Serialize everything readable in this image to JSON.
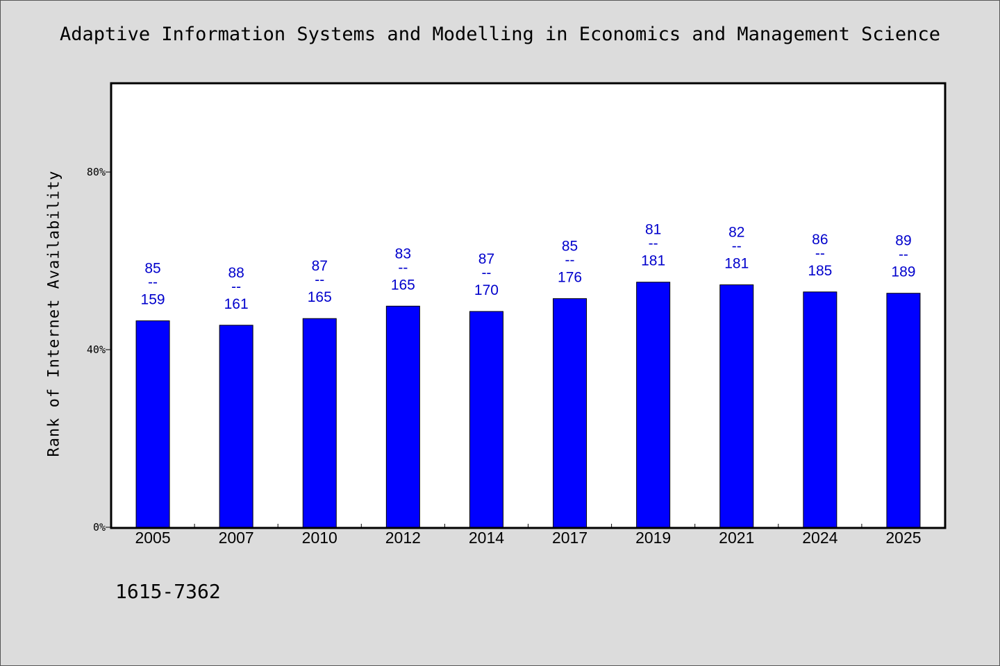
{
  "journal_title": "Adaptive Information Systems and Modelling in Economics and Management Science",
  "issn": "1615-7362",
  "colors": {
    "bar": "#0000ff",
    "label": "#0000cc",
    "background": "#dcdcdc",
    "plot_background": "#ffffff"
  },
  "chart_data": {
    "type": "bar",
    "title": "Adaptive Information Systems and Modelling in Economics and Management Science",
    "ylabel": "Rank of Internet Availability",
    "xlabel": "",
    "ylim": [
      0,
      100
    ],
    "yticks": [
      0,
      40,
      80
    ],
    "ytick_labels": [
      "0%",
      "40%",
      "80%"
    ],
    "grid": false,
    "categories": [
      "2005",
      "2007",
      "2010",
      "2012",
      "2014",
      "2017",
      "2019",
      "2021",
      "2024",
      "2025"
    ],
    "values": [
      46.5,
      45.5,
      47,
      49.8,
      48.6,
      51.5,
      55.2,
      54.6,
      53,
      52.7
    ],
    "rank": [
      "85",
      "88",
      "87",
      "83",
      "87",
      "85",
      "81",
      "82",
      "86",
      "89"
    ],
    "separator": "--",
    "total": [
      "159",
      "161",
      "165",
      "165",
      "170",
      "176",
      "181",
      "181",
      "185",
      "189"
    ]
  }
}
